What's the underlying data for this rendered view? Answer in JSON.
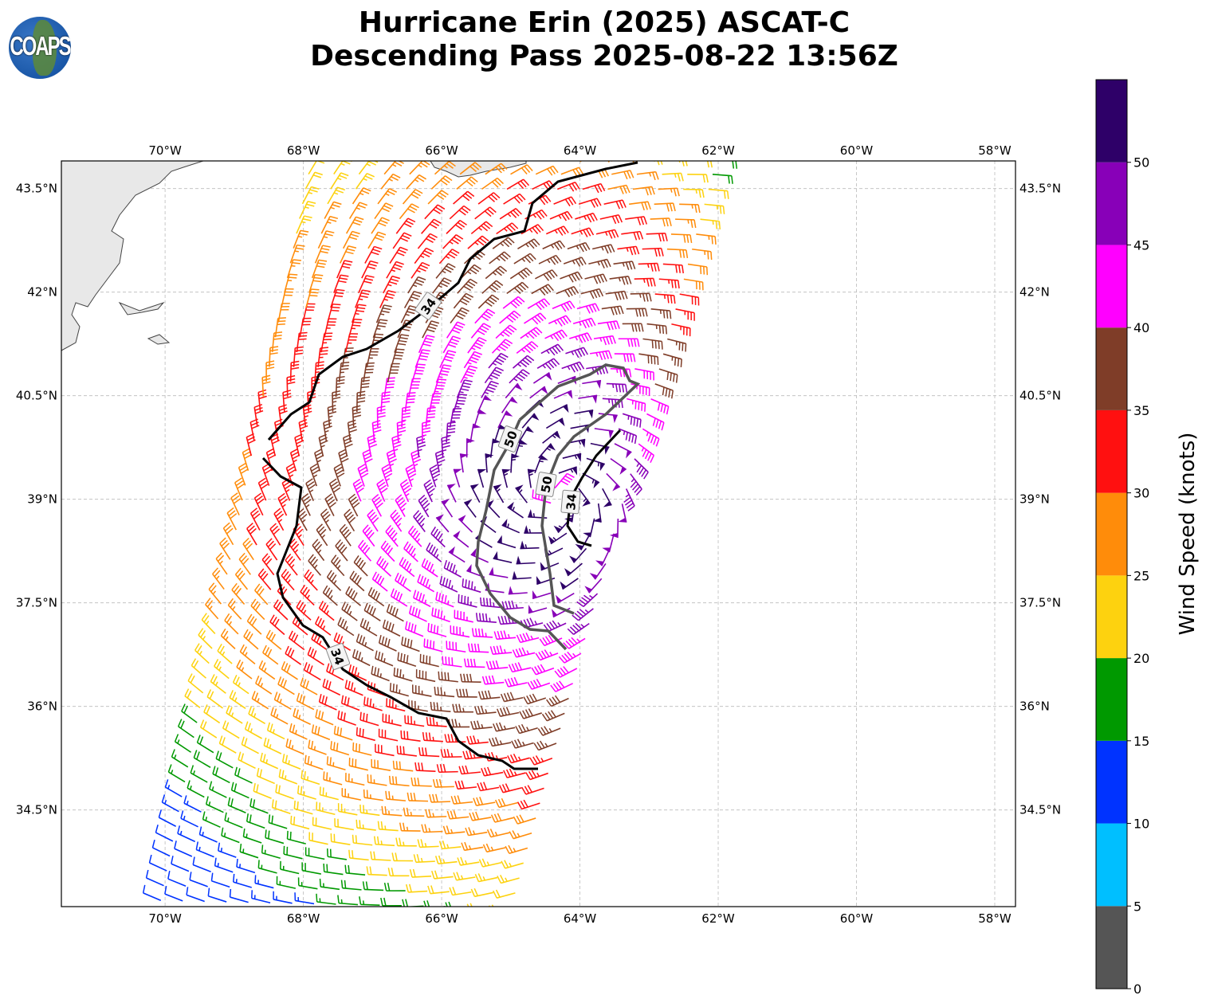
{
  "title": {
    "line1": "Hurricane Erin (2025) ASCAT-C",
    "line2": "Descending Pass 2025-08-22 13:56Z"
  },
  "logo": {
    "text": "COAPS"
  },
  "chart_data": {
    "type": "map-wind-barbs",
    "title": "Hurricane Erin (2025) ASCAT-C Descending Pass 2025-08-22 13:56Z",
    "lon_range": [
      -71.5,
      -57.7
    ],
    "lat_range": [
      33.1,
      43.9
    ],
    "lon_ticks": [
      {
        "value": -70,
        "label": "70°W"
      },
      {
        "value": -68,
        "label": "68°W"
      },
      {
        "value": -66,
        "label": "66°W"
      },
      {
        "value": -64,
        "label": "64°W"
      },
      {
        "value": -62,
        "label": "62°W"
      },
      {
        "value": -60,
        "label": "60°W"
      },
      {
        "value": -58,
        "label": "58°W"
      }
    ],
    "lat_ticks": [
      {
        "value": 43.5,
        "label": "43.5°N"
      },
      {
        "value": 42,
        "label": "42°N"
      },
      {
        "value": 40.5,
        "label": "40.5°N"
      },
      {
        "value": 39,
        "label": "39°N"
      },
      {
        "value": 37.5,
        "label": "37.5°N"
      },
      {
        "value": 36,
        "label": "36°N"
      },
      {
        "value": 34.5,
        "label": "34.5°N"
      }
    ],
    "grid": true,
    "contours": [
      {
        "level": 34,
        "label": "34",
        "color": "#000000"
      },
      {
        "level": 50,
        "label": "50",
        "color": "#555555"
      }
    ],
    "colorbar": {
      "label": "Wind Speed (knots)",
      "range": [
        0,
        55
      ],
      "ticks": [
        "0",
        "5",
        "10",
        "15",
        "20",
        "25",
        "30",
        "35",
        "40",
        "45",
        "50"
      ],
      "bins": [
        {
          "min": 0,
          "max": 5,
          "color": "#555555"
        },
        {
          "min": 5,
          "max": 10,
          "color": "#00bfff"
        },
        {
          "min": 10,
          "max": 15,
          "color": "#0033ff"
        },
        {
          "min": 15,
          "max": 20,
          "color": "#009900"
        },
        {
          "min": 20,
          "max": 25,
          "color": "#fdd20f"
        },
        {
          "min": 25,
          "max": 30,
          "color": "#ff8c0a"
        },
        {
          "min": 30,
          "max": 35,
          "color": "#ff1010"
        },
        {
          "min": 35,
          "max": 40,
          "color": "#7f3d28"
        },
        {
          "min": 40,
          "max": 45,
          "color": "#ff00ff"
        },
        {
          "min": 45,
          "max": 50,
          "color": "#8800b8"
        },
        {
          "min": 50,
          "max": 55,
          "color": "#2e0068"
        }
      ]
    }
  }
}
